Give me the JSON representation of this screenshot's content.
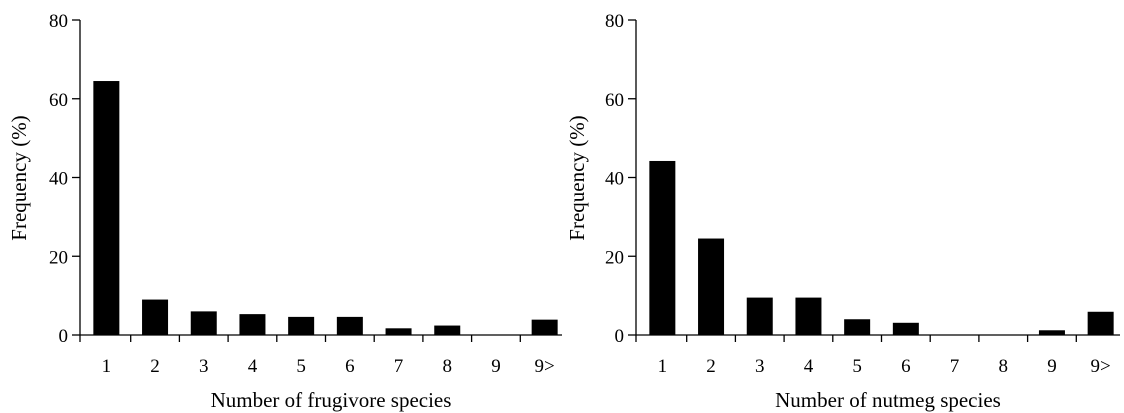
{
  "chart_data": [
    {
      "type": "bar",
      "categories": [
        "1",
        "2",
        "3",
        "4",
        "5",
        "6",
        "7",
        "8",
        "9",
        "9>"
      ],
      "values": [
        64.5,
        9,
        6,
        5.3,
        4.6,
        4.6,
        1.7,
        2.4,
        0,
        3.9
      ],
      "title": "",
      "xlabel": "Number of frugivore species",
      "ylabel": "Frequency (%)",
      "ylim": [
        0,
        80
      ],
      "yticks": [
        0,
        20,
        40,
        60,
        80
      ],
      "grid": false,
      "bar_color": "#000000"
    },
    {
      "type": "bar",
      "categories": [
        "1",
        "2",
        "3",
        "4",
        "5",
        "6",
        "7",
        "8",
        "9",
        "9>"
      ],
      "values": [
        44.2,
        24.5,
        9.5,
        9.5,
        4,
        3.1,
        0,
        0,
        1.2,
        5.9
      ],
      "title": "",
      "xlabel": "Number of nutmeg species",
      "ylabel": "Frequency (%)",
      "ylim": [
        0,
        80
      ],
      "yticks": [
        0,
        20,
        40,
        60,
        80
      ],
      "grid": false,
      "bar_color": "#000000"
    }
  ]
}
